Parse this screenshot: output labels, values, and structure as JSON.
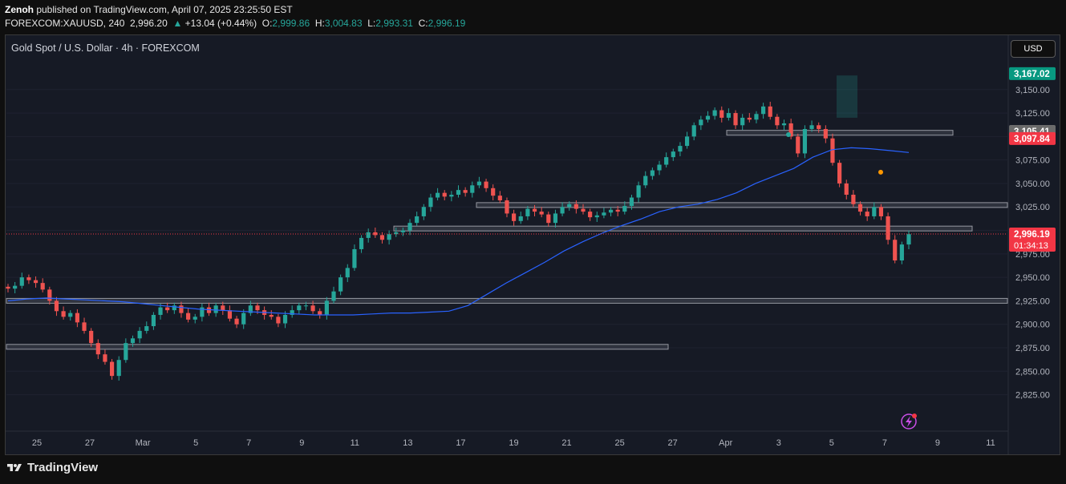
{
  "publish": {
    "author": "Zenoh",
    "text": " published on TradingView.com, April 07, 2025 23:25:50 EST"
  },
  "quote": {
    "symbol": "FOREXCOM:XAUUSD, 240",
    "last": "2,996.20",
    "change": "+13.04 (+0.44%)",
    "open_label": "O:",
    "open": "2,999.86",
    "high_label": "H:",
    "high": "3,004.83",
    "low_label": "L:",
    "low": "2,993.31",
    "close_label": "C:",
    "close": "2,996.19"
  },
  "header": {
    "title": "Gold Spot / U.S. Dollar · 4h · FOREXCOM",
    "currency_button": "USD"
  },
  "footer": {
    "brand": "TradingView"
  },
  "colors": {
    "up": "#26a69a",
    "down": "#ef5350",
    "ma": "#2962ff",
    "zone": "#787b86",
    "bg": "#161a25"
  },
  "chart_data": {
    "type": "candlestick",
    "y_ticks": [
      "2,825.00",
      "2,850.00",
      "2,875.00",
      "2,900.00",
      "2,925.00",
      "2,950.00",
      "2,975.00",
      "3,000.00",
      "3,025.00",
      "3,050.00",
      "3,075.00",
      "3,100.00",
      "3,125.00",
      "3,150.00"
    ],
    "y_range": [
      2805,
      3172
    ],
    "x_ticks": [
      "25",
      "27",
      "Mar",
      "5",
      "7",
      "9",
      "11",
      "13",
      "17",
      "19",
      "21",
      "25",
      "27",
      "Apr",
      "3",
      "5",
      "7",
      "9",
      "11"
    ],
    "price_labels": [
      {
        "value": 3167.02,
        "text": "3,167.02",
        "color": "#089981"
      },
      {
        "value": 3105.41,
        "text": "3,105.41",
        "color": "#6b6b6b"
      },
      {
        "value": 3097.84,
        "text": "3,097.84",
        "color": "#f23645"
      },
      {
        "value": 2996.19,
        "text": "2,996.19",
        "color": "#f23645",
        "sub": "01:34:13"
      }
    ],
    "horizontal_zones": [
      2876,
      2925,
      3002,
      3027,
      3104
    ],
    "closes": [
      2938,
      2941,
      2950,
      2947,
      2944,
      2937,
      2925,
      2914,
      2908,
      2912,
      2902,
      2893,
      2880,
      2868,
      2860,
      2845,
      2862,
      2880,
      2885,
      2893,
      2898,
      2910,
      2918,
      2915,
      2920,
      2912,
      2905,
      2908,
      2918,
      2912,
      2920,
      2915,
      2906,
      2900,
      2912,
      2920,
      2915,
      2910,
      2908,
      2901,
      2910,
      2915,
      2920,
      2920,
      2914,
      2910,
      2925,
      2935,
      2950,
      2960,
      2980,
      2992,
      2998,
      2995,
      2990,
      2996,
      2998,
      3000,
      3008,
      3015,
      3025,
      3035,
      3040,
      3036,
      3038,
      3043,
      3040,
      3048,
      3052,
      3045,
      3037,
      3032,
      3018,
      3010,
      3015,
      3023,
      3020,
      3017,
      3008,
      3018,
      3025,
      3028,
      3023,
      3020,
      3014,
      3016,
      3019,
      3022,
      3020,
      3026,
      3035,
      3048,
      3058,
      3064,
      3070,
      3078,
      3084,
      3090,
      3100,
      3112,
      3118,
      3122,
      3128,
      3120,
      3125,
      3112,
      3120,
      3118,
      3124,
      3132,
      3121,
      3112,
      3114,
      3100,
      3082,
      3108,
      3112,
      3108,
      3098,
      3072,
      3050,
      3038,
      3028,
      3020,
      3015,
      3025,
      3015,
      2990,
      2968,
      2985,
      2996
    ],
    "moving_average": [
      2925,
      2927,
      2928,
      2927,
      2926,
      2925,
      2924,
      2922,
      2920,
      2918,
      2916,
      2915,
      2914,
      2913,
      2912,
      2911,
      2910,
      2910,
      2910,
      2911,
      2912,
      2912,
      2913,
      2914,
      2920,
      2932,
      2944,
      2955,
      2966,
      2978,
      2988,
      2997,
      3005,
      3012,
      3020,
      3025,
      3028,
      3033,
      3040,
      3050,
      3058,
      3066,
      3078,
      3086,
      3088,
      3087,
      3085,
      3083
    ],
    "markers": [
      {
        "x": "Apr 2",
        "y": 3102,
        "color": "#26a69a"
      },
      {
        "x": "Apr 6",
        "y": 3062,
        "color": "#ff9800"
      }
    ]
  }
}
